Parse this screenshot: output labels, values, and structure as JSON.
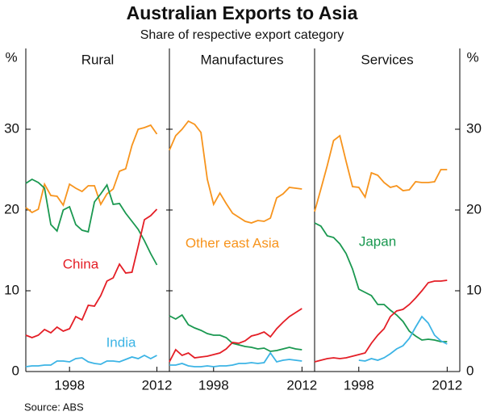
{
  "title": "Australian Exports to Asia",
  "subtitle": "Share of respective export category",
  "y_label": "%",
  "source": "Source: ABS",
  "chart_data": [
    {
      "type": "line",
      "title": "Rural",
      "x": [
        1991,
        1992,
        1993,
        1994,
        1995,
        1996,
        1997,
        1998,
        1999,
        2000,
        2001,
        2002,
        2003,
        2004,
        2005,
        2006,
        2007,
        2008,
        2009,
        2010,
        2011,
        2012
      ],
      "xlim": [
        1991,
        2014
      ],
      "xticks": [
        1998,
        2012
      ],
      "ylim": [
        0,
        40
      ],
      "yticks": [
        0,
        10,
        20,
        30
      ],
      "series": [
        {
          "color": "#f7941d",
          "values": [
            20.3,
            19.7,
            20.1,
            23.2,
            21.8,
            21.7,
            20.6,
            23.2,
            22.7,
            22.3,
            23,
            23,
            20.7,
            22,
            22.6,
            24.8,
            25.1,
            28,
            30,
            30.2,
            30.5,
            29.4
          ]
        },
        {
          "color": "#1a9850",
          "values": [
            23.3,
            23.8,
            23.4,
            22.7,
            18.2,
            17.4,
            20,
            20.4,
            18.2,
            17.5,
            17.3,
            21,
            22,
            23.1,
            20.7,
            20.8,
            19.6,
            18.6,
            17.6,
            16.2,
            14.6,
            13.2
          ]
        },
        {
          "name": "China",
          "color": "#e41e26",
          "values": [
            4.5,
            4.2,
            4.5,
            5.2,
            4.8,
            5.5,
            5,
            5.3,
            6.8,
            6.4,
            8.2,
            8.1,
            9.4,
            11.2,
            11.6,
            13.3,
            12.2,
            12.3,
            15.5,
            18.8,
            19.3,
            20.1
          ]
        },
        {
          "name": "India",
          "color": "#3cb4e5",
          "values": [
            0.6,
            0.7,
            0.7,
            0.8,
            0.8,
            1.3,
            1.3,
            1.2,
            1.6,
            1.7,
            1.2,
            1,
            0.9,
            1.3,
            1.3,
            1.2,
            1.5,
            1.8,
            1.6,
            2,
            1.6,
            2
          ]
        }
      ]
    },
    {
      "type": "line",
      "title": "Manufactures",
      "x": [
        1991,
        1992,
        1993,
        1994,
        1995,
        1996,
        1997,
        1998,
        1999,
        2000,
        2001,
        2002,
        2003,
        2004,
        2005,
        2006,
        2007,
        2008,
        2009,
        2010,
        2011,
        2012
      ],
      "xlim": [
        1991,
        2014
      ],
      "xticks": [
        1998,
        2012
      ],
      "ylim": [
        0,
        40
      ],
      "yticks": [
        0,
        10,
        20,
        30
      ],
      "series": [
        {
          "name": "Other east Asia",
          "color": "#f7941d",
          "values": [
            27.4,
            29.2,
            30,
            31,
            30.6,
            29.6,
            23.8,
            20.7,
            22.1,
            20.8,
            19.6,
            19.1,
            18.6,
            18.4,
            18.7,
            18.6,
            19,
            21.5,
            22,
            22.8,
            22.7,
            22.6
          ]
        },
        {
          "color": "#1a9850",
          "values": [
            6.9,
            6.5,
            7,
            5.8,
            5.4,
            5.1,
            4.7,
            4.5,
            4.5,
            4.2,
            3.5,
            3.3,
            3.1,
            3,
            2.8,
            2.9,
            2.5,
            2.6,
            2.8,
            3,
            2.8,
            2.7
          ]
        },
        {
          "color": "#e41e26",
          "values": [
            1.2,
            2.7,
            2,
            2.3,
            1.7,
            1.8,
            1.9,
            2.1,
            2.3,
            2.8,
            3.6,
            3.5,
            3.8,
            4.4,
            4.6,
            4.9,
            4.3,
            5.3,
            6.1,
            6.8,
            7.3,
            7.8
          ]
        },
        {
          "color": "#3cb4e5",
          "values": [
            0.8,
            0.8,
            1,
            0.7,
            0.6,
            0.6,
            0.7,
            0.6,
            0.7,
            0.7,
            0.8,
            1,
            1,
            1.1,
            1,
            1.1,
            2.3,
            1.2,
            1.4,
            1.5,
            1.4,
            1.3
          ]
        }
      ]
    },
    {
      "type": "line",
      "title": "Services",
      "x": [
        1991,
        1992,
        1993,
        1994,
        1995,
        1996,
        1997,
        1998,
        1999,
        2000,
        2001,
        2002,
        2003,
        2004,
        2005,
        2006,
        2007,
        2008,
        2009,
        2010,
        2011,
        2012
      ],
      "xlim": [
        1991,
        2014
      ],
      "xticks": [
        1998,
        2012
      ],
      "ylim": [
        0,
        40
      ],
      "yticks": [
        0,
        10,
        20,
        30
      ],
      "series": [
        {
          "color": "#f7941d",
          "values": [
            19.8,
            22.6,
            25.5,
            28.6,
            29.2,
            26,
            22.9,
            22.8,
            21.6,
            24.6,
            24.3,
            23.4,
            22.8,
            23,
            22.4,
            22.5,
            23.5,
            23.4,
            23.4,
            23.5,
            25,
            25
          ]
        },
        {
          "name": "Japan",
          "color": "#1a9850",
          "values": [
            18.4,
            18,
            16.8,
            16.6,
            15.8,
            14.6,
            12.7,
            10.2,
            9.8,
            9.4,
            8.3,
            8.3,
            7.6,
            7,
            6.2,
            5,
            4.4,
            3.9,
            4,
            3.9,
            3.7,
            3.7
          ]
        },
        {
          "color": "#e41e26",
          "values": [
            1.2,
            1.4,
            1.6,
            1.7,
            1.6,
            1.7,
            1.9,
            2.1,
            2.3,
            3.5,
            4.5,
            5.3,
            6.8,
            7.5,
            7.7,
            8.3,
            9.1,
            10,
            11,
            11.2,
            11.2,
            11.3
          ]
        },
        {
          "color": "#3cb4e5",
          "values": [
            null,
            null,
            null,
            null,
            null,
            null,
            null,
            1.4,
            1.3,
            1.6,
            1.4,
            1.7,
            2.2,
            2.8,
            3.2,
            4.1,
            5.5,
            6.8,
            6,
            4.5,
            3.8,
            3.4
          ]
        }
      ]
    }
  ]
}
